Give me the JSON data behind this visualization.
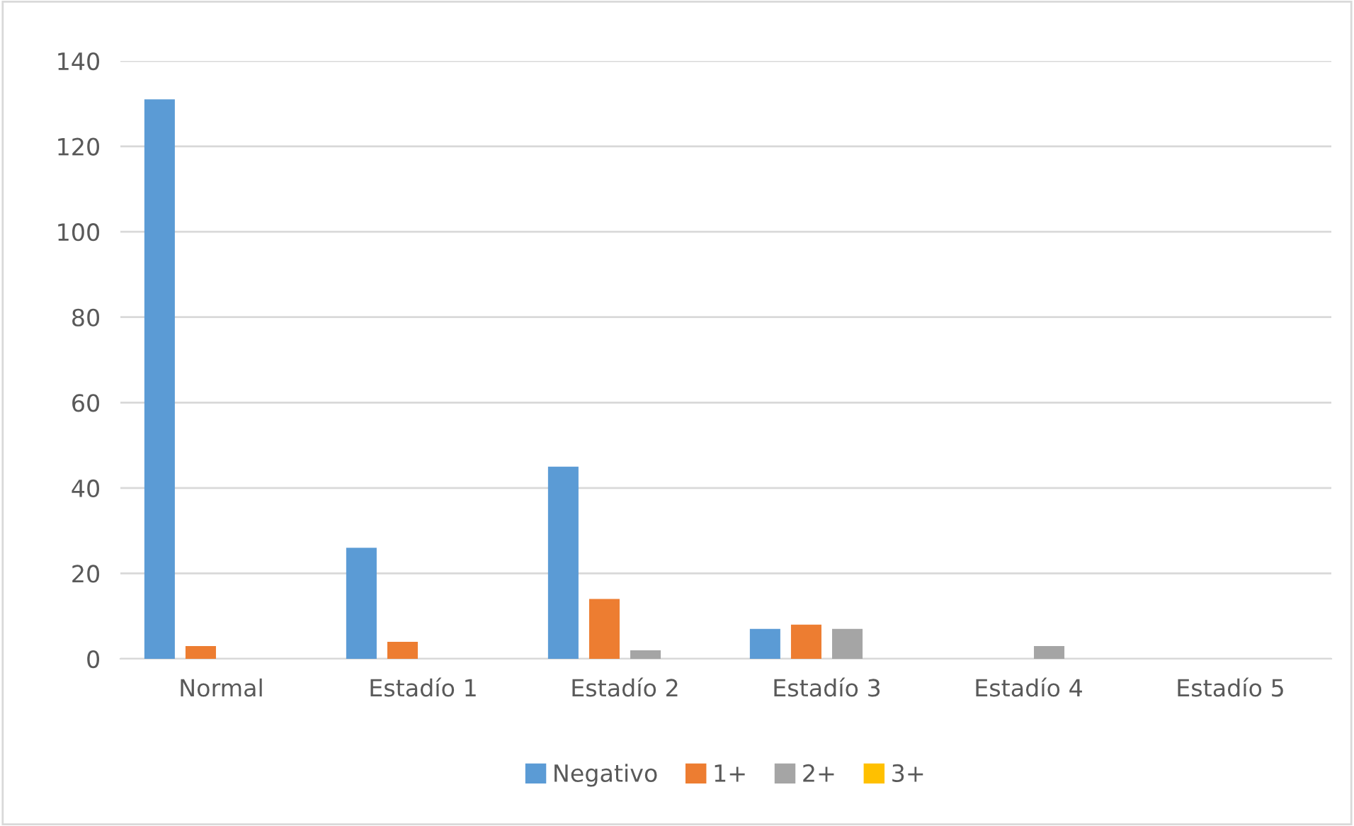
{
  "chart_data": {
    "type": "bar",
    "categories": [
      "Normal",
      "Estadío 1",
      "Estadío 2",
      "Estadío 3",
      "Estadío 4",
      "Estadío 5"
    ],
    "series": [
      {
        "name": "Negativo",
        "color": "#5b9bd5",
        "values": [
          131,
          26,
          45,
          7,
          0,
          0
        ]
      },
      {
        "name": "1+",
        "color": "#ed7d31",
        "values": [
          3,
          4,
          14,
          8,
          0,
          0
        ]
      },
      {
        "name": "2+",
        "color": "#a5a5a5",
        "values": [
          0,
          0,
          2,
          7,
          3,
          0
        ]
      },
      {
        "name": "3+",
        "color": "#ffc000",
        "values": [
          0,
          0,
          0,
          0,
          0,
          0
        ]
      }
    ],
    "ylim": [
      0,
      140
    ],
    "yticks": [
      0,
      20,
      40,
      60,
      80,
      100,
      120,
      140
    ],
    "grid": "y",
    "legend": "bottom"
  }
}
